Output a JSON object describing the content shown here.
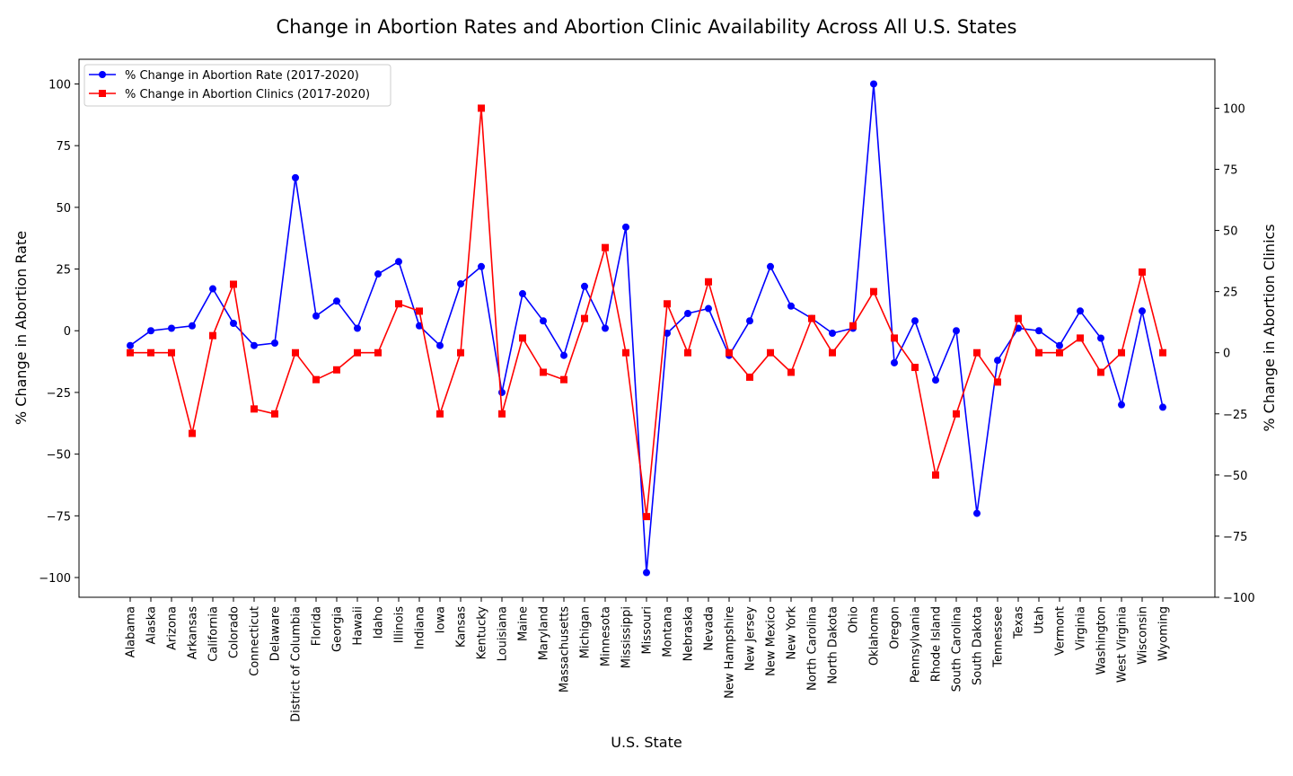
{
  "chart_data": {
    "type": "line",
    "title": "Change in Abortion Rates and Abortion Clinic Availability Across All U.S. States",
    "xlabel": "U.S. State",
    "ylabel_left": "% Change in Abortion Rate",
    "ylabel_right": "% Change in Abortion Clinics",
    "ylim_left": [
      -108,
      110
    ],
    "ylim_right": [
      -100,
      120
    ],
    "yticks_left": [
      -100,
      -75,
      -50,
      -25,
      0,
      25,
      50,
      75,
      100
    ],
    "yticks_right": [
      -100,
      -75,
      -50,
      -25,
      0,
      25,
      50,
      75,
      100
    ],
    "grid": false,
    "legend_position": "upper-left",
    "categories": [
      "Alabama",
      "Alaska",
      "Arizona",
      "Arkansas",
      "California",
      "Colorado",
      "Connecticut",
      "Delaware",
      "District of Columbia",
      "Florida",
      "Georgia",
      "Hawaii",
      "Idaho",
      "Illinois",
      "Indiana",
      "Iowa",
      "Kansas",
      "Kentucky",
      "Louisiana",
      "Maine",
      "Maryland",
      "Massachusetts",
      "Michigan",
      "Minnesota",
      "Mississippi",
      "Missouri",
      "Montana",
      "Nebraska",
      "Nevada",
      "New Hampshire",
      "New Jersey",
      "New Mexico",
      "New York",
      "North Carolina",
      "North Dakota",
      "Ohio",
      "Oklahoma",
      "Oregon",
      "Pennsylvania",
      "Rhode Island",
      "South Carolina",
      "South Dakota",
      "Tennessee",
      "Texas",
      "Utah",
      "Vermont",
      "Virginia",
      "Washington",
      "West Virginia",
      "Wisconsin",
      "Wyoming"
    ],
    "series": [
      {
        "name": "% Change in Abortion Rate (2017-2020)",
        "axis": "left",
        "color": "#0000ff",
        "marker": "circle",
        "values": [
          -6,
          0,
          1,
          2,
          17,
          3,
          -6,
          -5,
          62,
          6,
          12,
          1,
          23,
          28,
          2,
          -6,
          19,
          26,
          -25,
          15,
          4,
          -10,
          18,
          1,
          42,
          -98,
          -1,
          7,
          9,
          -10,
          4,
          26,
          10,
          5,
          -1,
          1,
          100,
          -13,
          4,
          -20,
          0,
          -74,
          -12,
          1,
          0,
          -6,
          8,
          -3,
          -30,
          8,
          -31
        ]
      },
      {
        "name": "% Change in Abortion Clinics (2017-2020)",
        "axis": "right",
        "color": "#ff0000",
        "marker": "square",
        "values": [
          0,
          0,
          0,
          -33,
          7,
          28,
          -23,
          -25,
          0,
          -11,
          -7,
          0,
          0,
          20,
          17,
          -25,
          0,
          100,
          -25,
          6,
          -8,
          -11,
          14,
          43,
          0,
          -67,
          20,
          0,
          29,
          0,
          -10,
          0,
          -8,
          14,
          0,
          11,
          25,
          6,
          -6,
          -50,
          -25,
          0,
          -12,
          14,
          0,
          0,
          6,
          -8,
          0,
          33,
          0
        ]
      }
    ]
  }
}
